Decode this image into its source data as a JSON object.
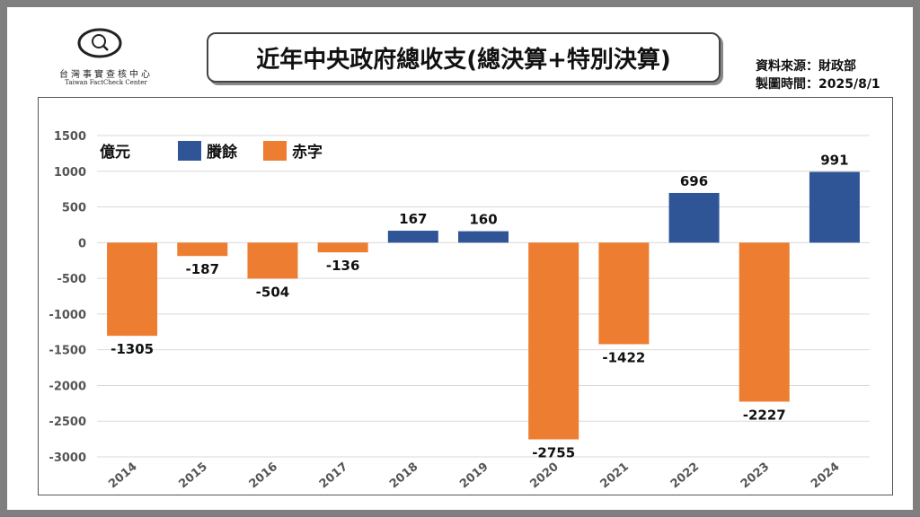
{
  "logo": {
    "name_cn": "台灣事實查核中心",
    "name_en": "Taiwan FactCheck Center"
  },
  "title": "近年中央政府總收支(總決算+特別決算)",
  "source": {
    "line1": "資料來源：財政部",
    "line2": "製圖時間：2025/8/1"
  },
  "colors": {
    "surplus": "#2f5597",
    "deficit": "#ed7d31",
    "grid": "#d9d9d9"
  },
  "chart_data": {
    "type": "bar",
    "unit_label": "億元",
    "categories": [
      "2014",
      "2015",
      "2016",
      "2017",
      "2018",
      "2019",
      "2020",
      "2021",
      "2022",
      "2023",
      "2024"
    ],
    "values": [
      -1305,
      -187,
      -504,
      -136,
      167,
      160,
      -2755,
      -1422,
      696,
      -2227,
      991
    ],
    "legend": [
      {
        "name": "賸餘",
        "color": "#2f5597"
      },
      {
        "name": "赤字",
        "color": "#ed7d31"
      }
    ],
    "ylim": [
      -3000,
      1500
    ],
    "yticks": [
      1500,
      1000,
      500,
      0,
      -500,
      -1000,
      -1500,
      -2000,
      -2500,
      -3000
    ],
    "grid": true,
    "legend_position": "top-left"
  }
}
